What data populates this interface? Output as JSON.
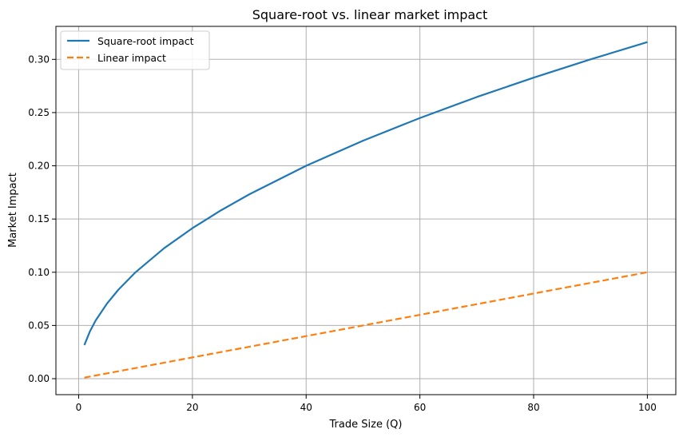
{
  "chart_data": {
    "type": "line",
    "title": "Square-root vs. linear market impact",
    "xlabel": "Trade Size (Q)",
    "ylabel": "Market Impact",
    "xlim": [
      -4,
      105
    ],
    "ylim": [
      -0.015,
      0.331
    ],
    "xticks": [
      0,
      20,
      40,
      60,
      80,
      100
    ],
    "yticks": [
      0.0,
      0.05,
      0.1,
      0.15,
      0.2,
      0.25,
      0.3
    ],
    "xtick_labels": [
      "0",
      "20",
      "40",
      "60",
      "80",
      "100"
    ],
    "ytick_labels": [
      "0.00",
      "0.05",
      "0.10",
      "0.15",
      "0.20",
      "0.25",
      "0.30"
    ],
    "grid": true,
    "legend_position": "top-left",
    "series": [
      {
        "name": "Square-root impact",
        "color": "#1f77b4",
        "style": "solid",
        "x": [
          1,
          2,
          3,
          5,
          7,
          10,
          15,
          20,
          25,
          30,
          40,
          50,
          60,
          70,
          80,
          90,
          100
        ],
        "y": [
          0.0316,
          0.0447,
          0.0548,
          0.0707,
          0.0837,
          0.1,
          0.1225,
          0.1414,
          0.1581,
          0.1732,
          0.2,
          0.2236,
          0.2449,
          0.2646,
          0.2828,
          0.3,
          0.3162
        ]
      },
      {
        "name": "Linear impact",
        "color": "#ff7f0e",
        "style": "dashed",
        "x": [
          1,
          20,
          40,
          60,
          80,
          100
        ],
        "y": [
          0.001,
          0.02,
          0.04,
          0.06,
          0.08,
          0.1
        ]
      }
    ]
  }
}
